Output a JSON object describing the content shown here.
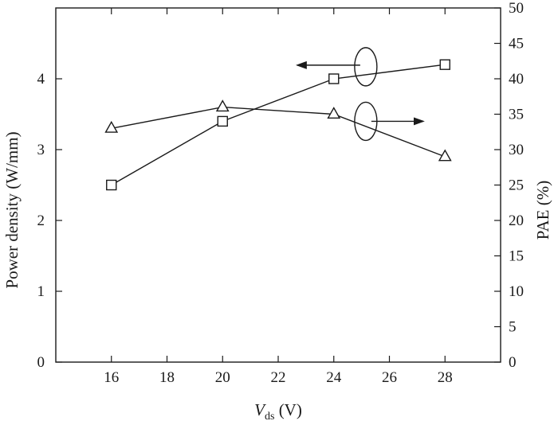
{
  "chart_data": {
    "type": "line",
    "x": [
      16,
      20,
      24,
      28
    ],
    "xlabel": {
      "main": "V",
      "sub": "ds",
      "unit": " (V)"
    },
    "ylabel_left": "Power density (W/mm)",
    "ylabel_right": "PAE (%)",
    "xlim": [
      14,
      30
    ],
    "ylim_left": [
      0,
      5
    ],
    "ylim_right": [
      0,
      50
    ],
    "x_ticks": [
      16,
      18,
      20,
      22,
      24,
      26,
      28
    ],
    "y_left_ticks": [
      0,
      1,
      2,
      3,
      4
    ],
    "y_right_ticks": [
      0,
      5,
      10,
      15,
      20,
      25,
      30,
      35,
      40,
      45,
      50
    ],
    "grid": false,
    "series": [
      {
        "axis": "left",
        "marker": "square",
        "values": [
          2.5,
          3.4,
          4.0,
          4.2
        ]
      },
      {
        "axis": "right",
        "marker": "triangle",
        "values": [
          33,
          36,
          35,
          29
        ]
      }
    ],
    "annotations": [
      {
        "kind": "ellipse-arrow",
        "points_to": "left",
        "series_marker": "square"
      },
      {
        "kind": "ellipse-arrow",
        "points_to": "right",
        "series_marker": "triangle"
      }
    ],
    "colors": {
      "line": "#1a1a1a",
      "marker_fill": "#ffffff"
    }
  }
}
